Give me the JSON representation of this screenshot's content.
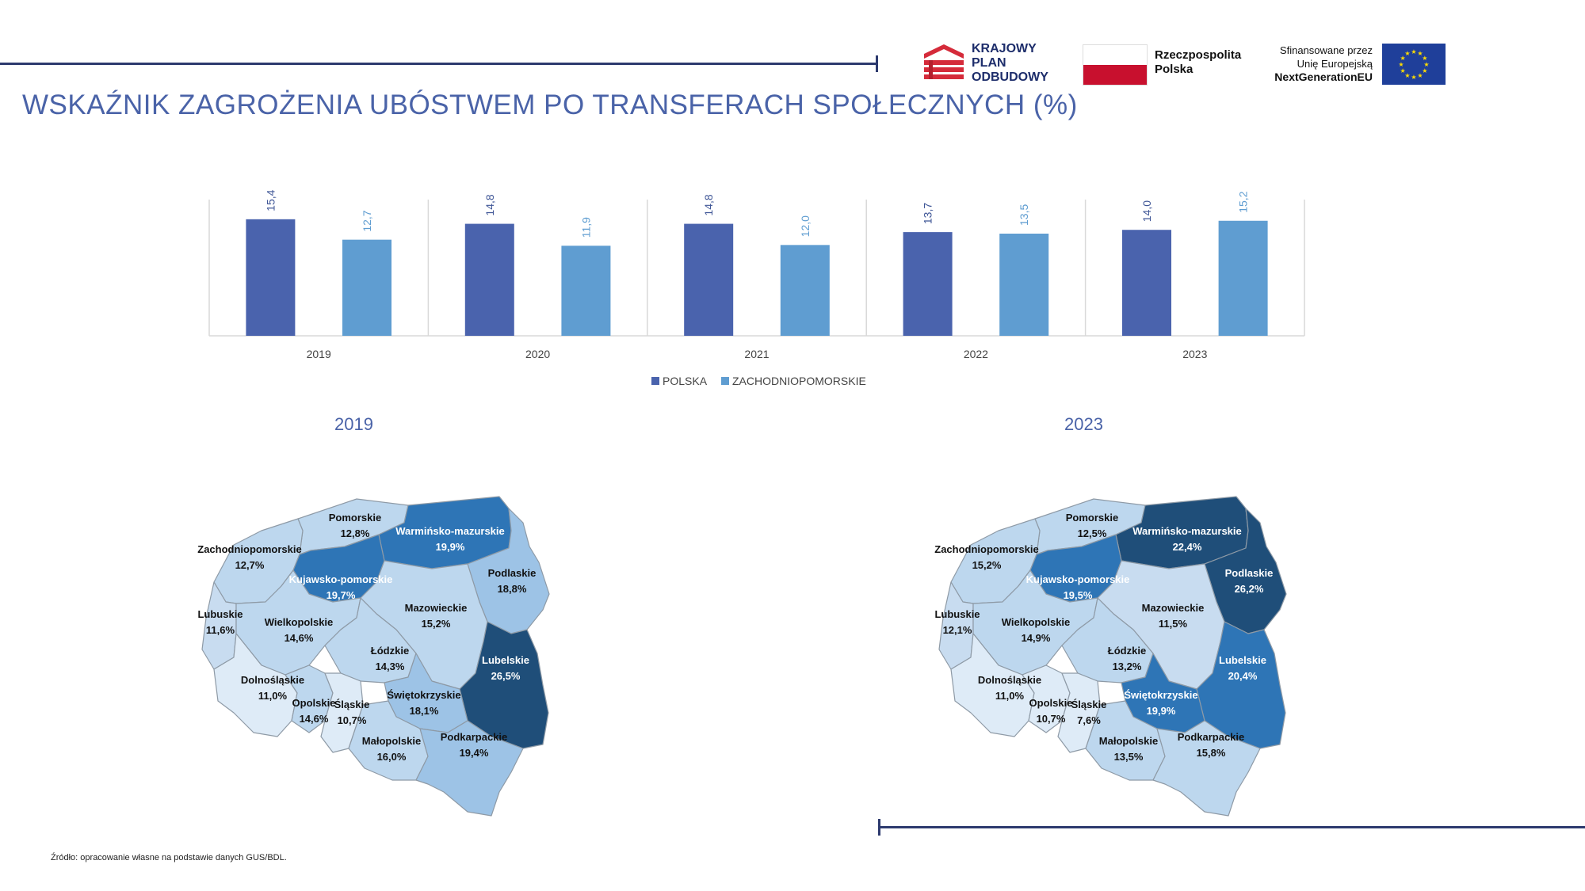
{
  "title": "WSKAŹNIK ZAGROŻENIA UBÓSTWEM PO TRANSFERACH SPOŁECZNYCH (%)",
  "source": "Źródło: opracowanie własne na podstawie danych GUS/BDL.",
  "logos": {
    "kpo": [
      "KRAJOWY",
      "PLAN",
      "ODBUDOWY"
    ],
    "poland": [
      "Rzeczpospolita",
      "Polska"
    ],
    "eu": [
      "Sfinansowane przez",
      "Unię Europejską",
      "NextGenerationEU"
    ]
  },
  "colors": {
    "polska": "#4a63ad",
    "zachodniopomorskie": "#5f9dd1",
    "title": "#4a63a8"
  },
  "chart_data": {
    "type": "bar",
    "categories": [
      "2019",
      "2020",
      "2021",
      "2022",
      "2023"
    ],
    "series": [
      {
        "name": "POLSKA",
        "values": [
          15.4,
          14.8,
          14.8,
          13.7,
          14.0
        ],
        "labels": [
          "15,4",
          "14,8",
          "14,8",
          "13,7",
          "14,0"
        ]
      },
      {
        "name": "ZACHODNIOPOMORSKIE",
        "values": [
          12.7,
          11.9,
          12.0,
          13.5,
          15.2
        ],
        "labels": [
          "12,7",
          "11,9",
          "12,0",
          "13,5",
          "15,2"
        ]
      }
    ],
    "ylim": [
      0,
      18
    ],
    "grid": false,
    "legend": "bottom"
  },
  "maps": [
    {
      "year": "2019",
      "regions": [
        {
          "name": "Pomorskie",
          "value": "12,8%",
          "v": 12.8
        },
        {
          "name": "Warmińsko-mazurskie",
          "value": "19,9%",
          "v": 19.9
        },
        {
          "name": "Zachodniopomorskie",
          "value": "12,7%",
          "v": 12.7
        },
        {
          "name": "Podlaskie",
          "value": "18,8%",
          "v": 18.8
        },
        {
          "name": "Kujawsko-pomorskie",
          "value": "19,7%",
          "v": 19.7
        },
        {
          "name": "Mazowieckie",
          "value": "15,2%",
          "v": 15.2
        },
        {
          "name": "Lubuskie",
          "value": "11,6%",
          "v": 11.6
        },
        {
          "name": "Wielkopolskie",
          "value": "14,6%",
          "v": 14.6
        },
        {
          "name": "Łódzkie",
          "value": "14,3%",
          "v": 14.3
        },
        {
          "name": "Lubelskie",
          "value": "26,5%",
          "v": 26.5
        },
        {
          "name": "Dolnośląskie",
          "value": "11,0%",
          "v": 11.0
        },
        {
          "name": "Opolskie",
          "value": "14,6%",
          "v": 14.6
        },
        {
          "name": "Śląskie",
          "value": "10,7%",
          "v": 10.7
        },
        {
          "name": "Świętokrzyskie",
          "value": "18,1%",
          "v": 18.1
        },
        {
          "name": "Małopolskie",
          "value": "16,0%",
          "v": 16.0
        },
        {
          "name": "Podkarpackie",
          "value": "19,4%",
          "v": 19.4
        }
      ]
    },
    {
      "year": "2023",
      "regions": [
        {
          "name": "Pomorskie",
          "value": "12,5%",
          "v": 12.5
        },
        {
          "name": "Warmińsko-mazurskie",
          "value": "22,4%",
          "v": 22.4
        },
        {
          "name": "Zachodniopomorskie",
          "value": "15,2%",
          "v": 15.2
        },
        {
          "name": "Podlaskie",
          "value": "26,2%",
          "v": 26.2
        },
        {
          "name": "Kujawsko-pomorskie",
          "value": "19,5%",
          "v": 19.5
        },
        {
          "name": "Mazowieckie",
          "value": "11,5%",
          "v": 11.5
        },
        {
          "name": "Lubuskie",
          "value": "12,1%",
          "v": 12.1
        },
        {
          "name": "Wielkopolskie",
          "value": "14,9%",
          "v": 14.9
        },
        {
          "name": "Łódzkie",
          "value": "13,2%",
          "v": 13.2
        },
        {
          "name": "Lubelskie",
          "value": "20,4%",
          "v": 20.4
        },
        {
          "name": "Dolnośląskie",
          "value": "11,0%",
          "v": 11.0
        },
        {
          "name": "Opolskie",
          "value": "10,7%",
          "v": 10.7
        },
        {
          "name": "Śląskie",
          "value": "7,6%",
          "v": 7.6
        },
        {
          "name": "Świętokrzyskie",
          "value": "19,9%",
          "v": 19.9
        },
        {
          "name": "Małopolskie",
          "value": "13,5%",
          "v": 13.5
        },
        {
          "name": "Podkarpackie",
          "value": "15,8%",
          "v": 15.8
        }
      ]
    }
  ]
}
